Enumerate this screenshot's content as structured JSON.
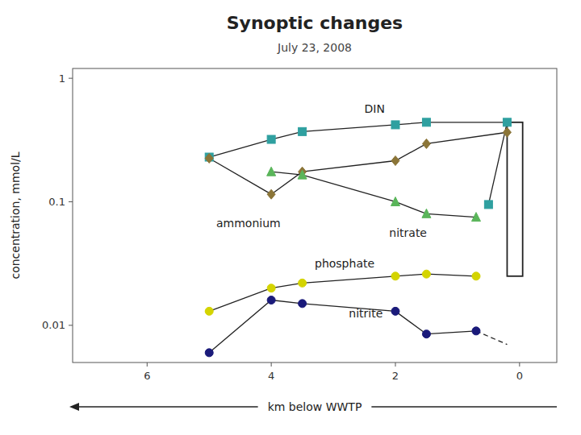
{
  "chart_data": {
    "type": "line",
    "title": "Synoptic changes",
    "subtitle": "July 23, 2008",
    "x_label": "km below WWTP",
    "y_label": "concentration, mmol/L",
    "log": "y",
    "grid": false,
    "xlim": [
      7.2,
      -0.6
    ],
    "ylim": [
      0.005,
      1.2
    ],
    "xticks": [
      6,
      4,
      2,
      0
    ],
    "yticks": [
      0.01,
      0.1,
      1
    ],
    "series": [
      {
        "name": "DIN",
        "color": "#2fa0a0",
        "marker": "square",
        "x": [
          5.0,
          4.0,
          3.5,
          2.0,
          1.5,
          0.2,
          0.5
        ],
        "values": [
          0.23,
          0.32,
          0.37,
          0.42,
          0.44,
          0.44,
          0.095
        ],
        "label_x": 2.5,
        "label_y": 0.5
      },
      {
        "name": "ammonium",
        "color": "#8B7538",
        "marker": "diamond",
        "x": [
          5.0,
          4.0,
          3.5,
          2.0,
          1.5,
          0.2
        ],
        "values": [
          0.225,
          0.115,
          0.175,
          0.215,
          0.295,
          0.365
        ],
        "label_x": 3.85,
        "label_y": 0.076
      },
      {
        "name": "nitrate",
        "color": "#5ab55a",
        "marker": "triangle",
        "x": [
          4.0,
          3.5,
          2.0,
          1.5,
          0.7
        ],
        "values": [
          0.175,
          0.165,
          0.1,
          0.08,
          0.075
        ],
        "label_x": 2.1,
        "label_y": 0.063
      },
      {
        "name": "phosphate",
        "color": "#d4d400",
        "marker": "circle",
        "x": [
          5.0,
          4.0,
          3.5,
          2.0,
          1.5,
          0.7
        ],
        "values": [
          0.013,
          0.02,
          0.022,
          0.025,
          0.026,
          0.025
        ],
        "label_x": 3.3,
        "label_y": 0.028
      },
      {
        "name": "nitrite",
        "color": "#1a1a7a",
        "marker": "circle",
        "x": [
          5.0,
          4.0,
          3.5,
          2.0,
          1.5,
          0.7
        ],
        "values": [
          0.006,
          0.016,
          0.015,
          0.013,
          0.0085,
          0.009
        ],
        "label_x": 2.75,
        "label_y": 0.011
      }
    ],
    "lines": [
      {
        "x": [
          0.7,
          0.2
        ],
        "values": [
          0.009,
          0.007
        ],
        "line_style": "dashed"
      }
    ],
    "rect": {
      "x": [
        0.2,
        -0.05
      ],
      "y": [
        0.44,
        0.025
      ]
    }
  }
}
